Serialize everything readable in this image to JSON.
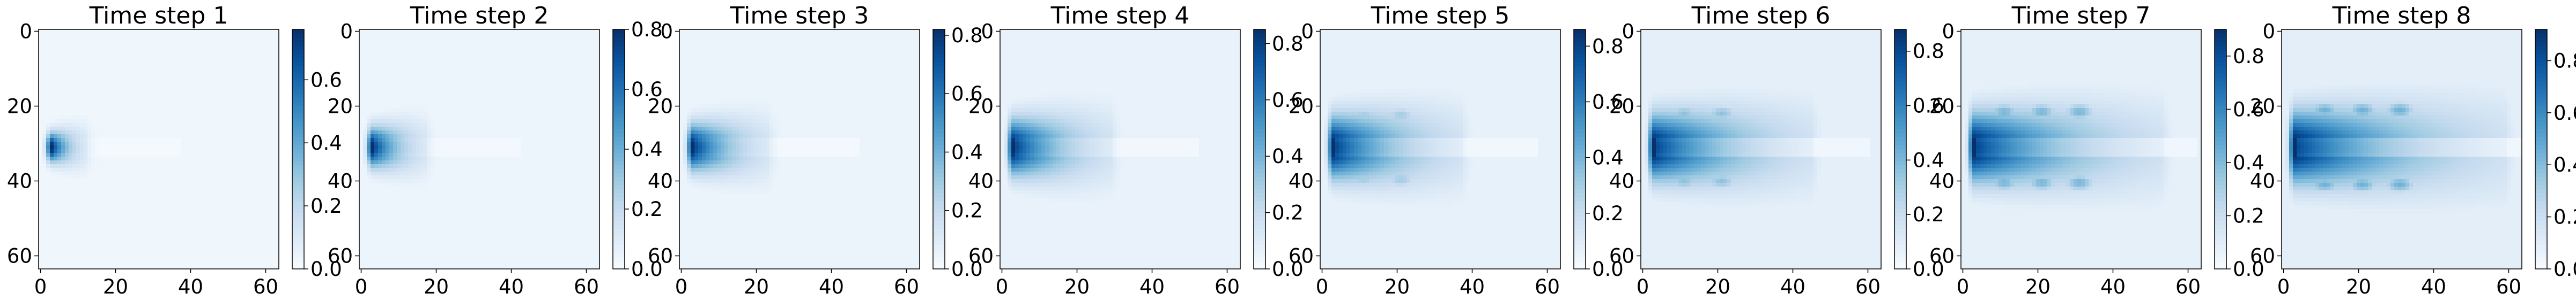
{
  "figure": {
    "colormap": "Blues",
    "colormap_stops": [
      "#f7fbff",
      "#deebf7",
      "#c6dbef",
      "#9ecae1",
      "#6baed6",
      "#4292c6",
      "#2171b5",
      "#08519c",
      "#08306b"
    ]
  },
  "chart_data": [
    {
      "type": "heatmap",
      "title": "Time step 1",
      "x_ticks": [
        "0",
        "20",
        "40",
        "60"
      ],
      "y_ticks": [
        "0",
        "20",
        "40",
        "60"
      ],
      "colorbar": {
        "ticks": [
          "0.0",
          "0.2",
          "0.4",
          "0.6"
        ],
        "vmin": 0.0,
        "vmax": 0.76
      },
      "grid_size": 64,
      "background_value": 0.03,
      "plume": {
        "source_x": 3,
        "source_y": 31,
        "peak": 0.76,
        "length": 9,
        "width": 4.5,
        "trail_length": 35,
        "trail_value": 0.01,
        "lobe_value": 0.0,
        "lobes": 0
      }
    },
    {
      "type": "heatmap",
      "title": "Time step 2",
      "x_ticks": [
        "0",
        "20",
        "40",
        "60"
      ],
      "y_ticks": [
        "0",
        "20",
        "40",
        "60"
      ],
      "colorbar": {
        "ticks": [
          "0.0",
          "0.2",
          "0.4",
          "0.6",
          "0.8"
        ],
        "vmin": 0.0,
        "vmax": 0.8
      },
      "grid_size": 64,
      "background_value": 0.04,
      "plume": {
        "source_x": 3,
        "source_y": 31,
        "peak": 0.8,
        "length": 14,
        "width": 6,
        "trail_length": 40,
        "trail_value": 0.015,
        "lobe_value": 0.0,
        "lobes": 0
      }
    },
    {
      "type": "heatmap",
      "title": "Time step 3",
      "x_ticks": [
        "0",
        "20",
        "40",
        "60"
      ],
      "y_ticks": [
        "0",
        "20",
        "40",
        "60"
      ],
      "colorbar": {
        "ticks": [
          "0.0",
          "0.2",
          "0.4",
          "0.6",
          "0.8"
        ],
        "vmin": 0.0,
        "vmax": 0.82
      },
      "grid_size": 64,
      "background_value": 0.05,
      "plume": {
        "source_x": 3,
        "source_y": 31,
        "peak": 0.82,
        "length": 20,
        "width": 7,
        "trail_length": 45,
        "trail_value": 0.02,
        "lobe_value": 0.05,
        "lobes": 1
      }
    },
    {
      "type": "heatmap",
      "title": "Time step 4",
      "x_ticks": [
        "0",
        "20",
        "40",
        "60"
      ],
      "y_ticks": [
        "0",
        "20",
        "40",
        "60"
      ],
      "colorbar": {
        "ticks": [
          "0.0",
          "0.2",
          "0.4",
          "0.6",
          "0.8"
        ],
        "vmin": 0.0,
        "vmax": 0.85
      },
      "grid_size": 64,
      "background_value": 0.06,
      "plume": {
        "source_x": 3,
        "source_y": 31,
        "peak": 0.85,
        "length": 26,
        "width": 8.5,
        "trail_length": 50,
        "trail_value": 0.03,
        "lobe_value": 0.08,
        "lobes": 1
      }
    },
    {
      "type": "heatmap",
      "title": "Time step 5",
      "x_ticks": [
        "0",
        "20",
        "40",
        "60"
      ],
      "y_ticks": [
        "0",
        "20",
        "40",
        "60"
      ],
      "colorbar": {
        "ticks": [
          "0.0",
          "0.2",
          "0.4",
          "0.6",
          "0.8"
        ],
        "vmin": 0.0,
        "vmax": 0.86
      },
      "grid_size": 64,
      "background_value": 0.07,
      "plume": {
        "source_x": 3,
        "source_y": 31,
        "peak": 0.86,
        "length": 34,
        "width": 9.5,
        "trail_length": 55,
        "trail_value": 0.04,
        "lobe_value": 0.1,
        "lobes": 2
      }
    },
    {
      "type": "heatmap",
      "title": "Time step 6",
      "x_ticks": [
        "0",
        "20",
        "40",
        "60"
      ],
      "y_ticks": [
        "0",
        "20",
        "40",
        "60"
      ],
      "colorbar": {
        "ticks": [
          "0.0",
          "0.2",
          "0.4",
          "0.6",
          "0.8"
        ],
        "vmin": 0.0,
        "vmax": 0.88
      },
      "grid_size": 64,
      "background_value": 0.08,
      "plume": {
        "source_x": 3,
        "source_y": 31,
        "peak": 0.88,
        "length": 42,
        "width": 10,
        "trail_length": 58,
        "trail_value": 0.05,
        "lobe_value": 0.12,
        "lobes": 2
      }
    },
    {
      "type": "heatmap",
      "title": "Time step 7",
      "x_ticks": [
        "0",
        "20",
        "40",
        "60"
      ],
      "y_ticks": [
        "0",
        "20",
        "40",
        "60"
      ],
      "colorbar": {
        "ticks": [
          "0.0",
          "0.2",
          "0.4",
          "0.6",
          "0.8"
        ],
        "vmin": 0.0,
        "vmax": 0.9
      },
      "grid_size": 64,
      "background_value": 0.08,
      "plume": {
        "source_x": 3,
        "source_y": 31,
        "peak": 0.9,
        "length": 50,
        "width": 10.5,
        "trail_length": 60,
        "trail_value": 0.05,
        "lobe_value": 0.14,
        "lobes": 3
      }
    },
    {
      "type": "heatmap",
      "title": "Time step 8",
      "x_ticks": [
        "0",
        "20",
        "40",
        "60"
      ],
      "y_ticks": [
        "0",
        "20",
        "40",
        "60"
      ],
      "colorbar": {
        "ticks": [
          "0.0",
          "0.2",
          "0.4",
          "0.6",
          "0.8"
        ],
        "vmin": 0.0,
        "vmax": 0.92
      },
      "grid_size": 64,
      "background_value": 0.09,
      "plume": {
        "source_x": 3,
        "source_y": 31,
        "peak": 0.92,
        "length": 56,
        "width": 11,
        "trail_length": 62,
        "trail_value": 0.06,
        "lobe_value": 0.15,
        "lobes": 3
      }
    }
  ]
}
